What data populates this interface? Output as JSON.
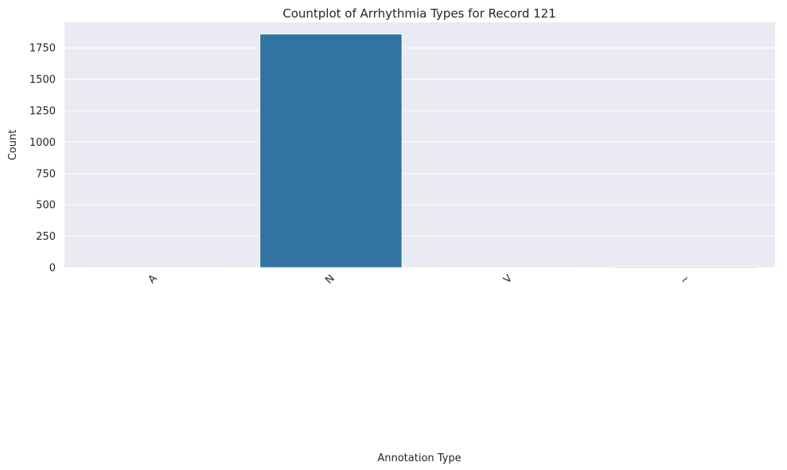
{
  "chart_data": {
    "type": "bar",
    "title": "Countplot of Arrhythmia Types for Record 121",
    "xlabel": "Annotation Type",
    "ylabel": "Count",
    "categories": [
      "A",
      "N",
      "V",
      "~"
    ],
    "values": [
      1,
      1861,
      1,
      8
    ],
    "ylim": [
      0,
      1954
    ],
    "yticks": [
      0,
      250,
      500,
      750,
      1000,
      1250,
      1500,
      1750
    ],
    "grid": true,
    "legend": "none",
    "colors": {
      "bar": "#3274a1",
      "plot_background": "#eaeaf2",
      "grid": "#ffffff",
      "text": "#262626"
    }
  }
}
